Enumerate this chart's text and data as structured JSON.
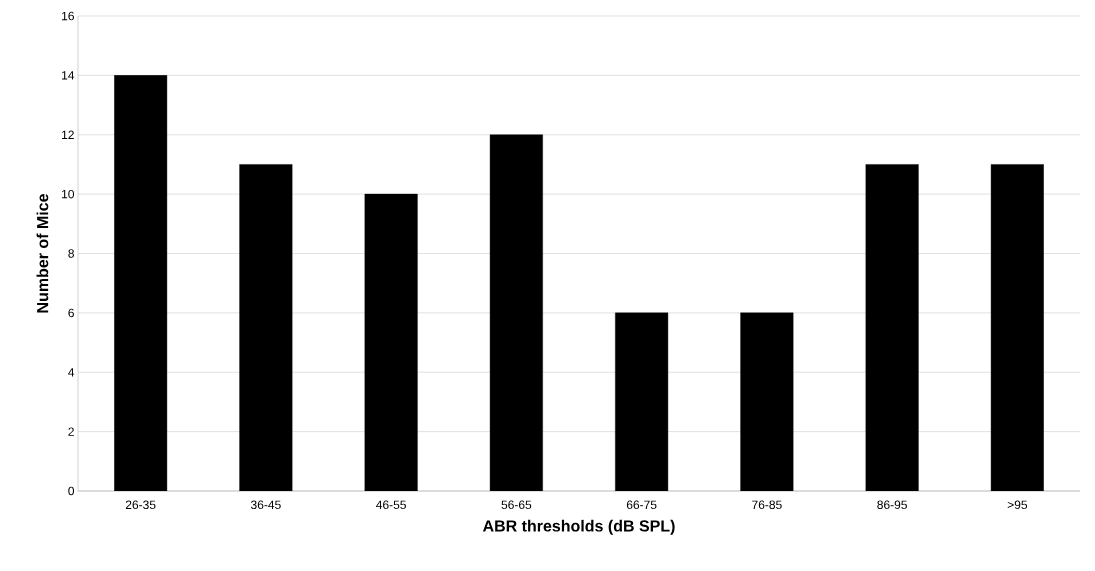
{
  "chart_data": {
    "type": "bar",
    "xlabel": "ABR thresholds (dB SPL)",
    "ylabel": "Number of Mice",
    "categories": [
      "26-35",
      "36-45",
      "46-55",
      "56-65",
      "66-75",
      "76-85",
      "86-95",
      ">95"
    ],
    "values": [
      14,
      11,
      10,
      12,
      6,
      6,
      11,
      11
    ],
    "color": "#000000",
    "ylim": [
      0,
      16
    ],
    "yticks": [
      0,
      2,
      4,
      6,
      8,
      10,
      12,
      14,
      16
    ],
    "grid": "y"
  }
}
